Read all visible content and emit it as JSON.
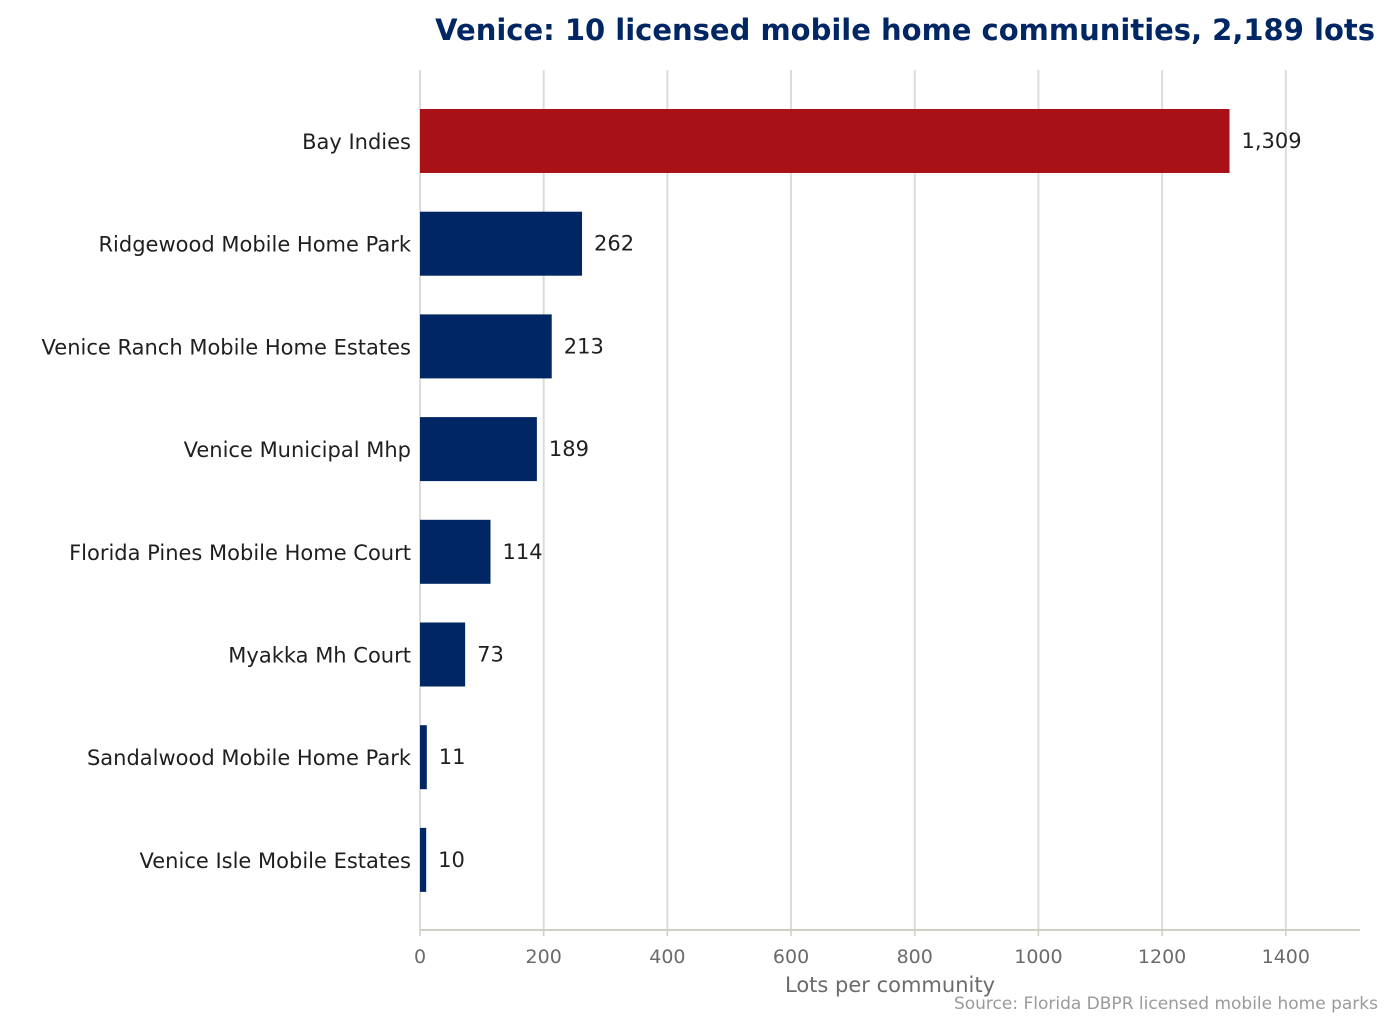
{
  "chart_data": {
    "type": "bar",
    "orientation": "horizontal",
    "title": "Venice: 10 licensed mobile home communities, 2,189 lots",
    "xlabel": "Lots per community",
    "ylabel": "",
    "source": "Source: Florida DBPR licensed mobile home parks",
    "categories": [
      "Bay Indies",
      "Ridgewood Mobile Home Park",
      "Venice Ranch Mobile Home Estates",
      "Venice Municipal Mhp",
      "Florida Pines Mobile Home Court",
      "Myakka Mh Court",
      "Sandalwood Mobile Home Park",
      "Venice Isle Mobile Estates"
    ],
    "values": [
      1309,
      262,
      213,
      189,
      114,
      73,
      11,
      10
    ],
    "value_labels": [
      "1,309",
      "262",
      "213",
      "189",
      "114",
      "73",
      "11",
      "10"
    ],
    "xlim": [
      0,
      1520
    ],
    "xticks": [
      0,
      200,
      400,
      600,
      800,
      1000,
      1200,
      1400
    ],
    "grid": "vertical",
    "legend": "none",
    "colors": {
      "highlight": "#a81115",
      "bar": "#002664",
      "title": "#002664",
      "grid": "#dcdcd6",
      "axis": "#cfcfc4"
    }
  }
}
